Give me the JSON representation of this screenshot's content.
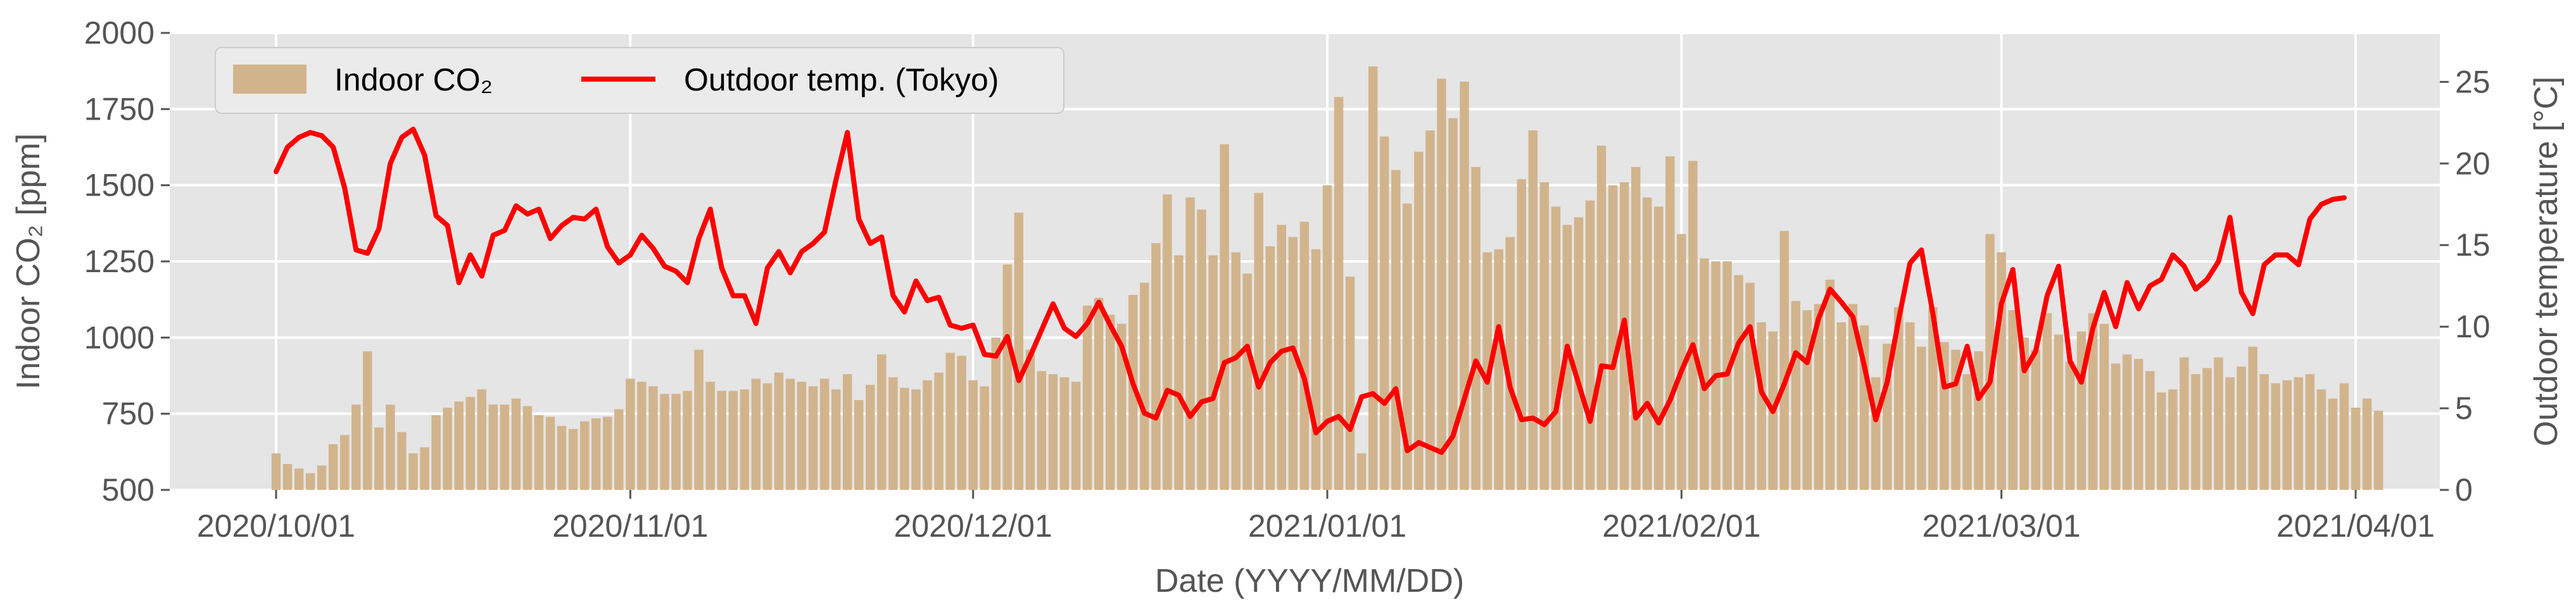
{
  "chart_data": {
    "type": "bar",
    "xlabel": "Date (YYYY/MM/DD)",
    "ylabel_left": "Indoor CO₂ [ppm]",
    "ylabel_right": "Outdoor temperature [°C]",
    "ylim_left": [
      500,
      2000
    ],
    "ylim_right": [
      0,
      28
    ],
    "yticks_left": [
      "500",
      "750",
      "1000",
      "1250",
      "1500",
      "1750",
      "2000"
    ],
    "yticks_right": [
      "0",
      "5",
      "10",
      "15",
      "20",
      "25"
    ],
    "xticks": [
      "2020/10/01",
      "2020/11/01",
      "2020/12/01",
      "2021/01/01",
      "2021/02/01",
      "2021/03/01",
      "2021/04/01"
    ],
    "grid": true,
    "legend_position": "top-left",
    "start_date": "2020/10/01",
    "colors": {
      "background": "#e5e5e5",
      "grid": "#ffffff",
      "bar": "#d2b48c",
      "line": "#ff0000"
    },
    "series": [
      {
        "name": "Indoor CO₂",
        "type": "bar",
        "values": [
          620,
          585,
          570,
          555,
          580,
          650,
          680,
          780,
          955,
          705,
          780,
          690,
          620,
          640,
          745,
          770,
          790,
          805,
          830,
          780,
          780,
          800,
          775,
          745,
          740,
          710,
          700,
          725,
          735,
          740,
          765,
          865,
          855,
          840,
          815,
          815,
          825,
          960,
          855,
          825,
          825,
          830,
          865,
          850,
          885,
          865,
          855,
          840,
          865,
          830,
          880,
          795,
          845,
          945,
          870,
          835,
          830,
          860,
          885,
          950,
          940,
          860,
          840,
          1000,
          1240,
          1410,
          960,
          890,
          880,
          870,
          855,
          1105,
          1130,
          1075,
          1045,
          1140,
          1180,
          1310,
          1470,
          1270,
          1460,
          1420,
          1270,
          1635,
          1280,
          1210,
          1475,
          1300,
          1370,
          1330,
          1380,
          1290,
          1500,
          1790,
          1200,
          620,
          1890,
          1660,
          1550,
          1440,
          1610,
          1680,
          1850,
          1720,
          1840,
          1560,
          1280,
          1290,
          1330,
          1520,
          1680,
          1510,
          1430,
          1370,
          1395,
          1450,
          1630,
          1500,
          1510,
          1560,
          1460,
          1430,
          1595,
          1340,
          1580,
          1260,
          1250,
          1250,
          1205,
          1180,
          1050,
          1020,
          1350,
          1120,
          1090,
          1110,
          1190,
          1050,
          1110,
          1040,
          870,
          980,
          1100,
          1050,
          970,
          1100,
          985,
          960,
          880,
          955,
          1340,
          1280,
          1090,
          1000,
          960,
          1080,
          1010,
          920,
          1020,
          1080,
          1045,
          915,
          945,
          930,
          890,
          820,
          830,
          935,
          880,
          900,
          935,
          870,
          905,
          970,
          880,
          850,
          860,
          870,
          880,
          830,
          800,
          850,
          770,
          800,
          760
        ],
        "color": "#d2b48c"
      },
      {
        "name": "Outdoor temp. (Tokyo)",
        "type": "line",
        "values": [
          19.5,
          21.0,
          21.6,
          21.9,
          21.7,
          21.0,
          18.5,
          14.7,
          14.5,
          16.0,
          20.0,
          21.6,
          22.1,
          20.5,
          16.8,
          16.2,
          12.7,
          14.4,
          13.1,
          15.6,
          15.9,
          17.4,
          16.9,
          17.2,
          15.4,
          16.2,
          16.7,
          16.6,
          17.2,
          14.9,
          13.9,
          14.4,
          15.6,
          14.8,
          13.7,
          13.4,
          12.7,
          15.4,
          17.2,
          13.6,
          11.9,
          11.9,
          10.2,
          13.6,
          14.6,
          13.3,
          14.6,
          15.1,
          15.8,
          19.0,
          21.9,
          16.6,
          15.1,
          15.5,
          11.9,
          10.9,
          12.8,
          11.6,
          11.8,
          10.1,
          9.9,
          10.1,
          8.3,
          8.2,
          9.4,
          6.7,
          8.2,
          9.8,
          11.4,
          9.9,
          9.4,
          10.2,
          11.5,
          10.1,
          8.8,
          6.5,
          4.7,
          4.4,
          6.1,
          5.8,
          4.5,
          5.4,
          5.6,
          7.8,
          8.1,
          8.8,
          6.3,
          7.8,
          8.5,
          8.7,
          6.8,
          3.5,
          4.2,
          4.5,
          3.7,
          5.7,
          5.9,
          5.3,
          6.2,
          2.4,
          2.9,
          2.6,
          2.3,
          3.3,
          5.6,
          7.9,
          6.6,
          10.0,
          6.3,
          4.3,
          4.4,
          4.0,
          4.8,
          8.8,
          6.5,
          4.2,
          7.6,
          7.5,
          10.4,
          4.4,
          5.3,
          4.1,
          5.5,
          7.3,
          8.9,
          6.2,
          7.0,
          7.1,
          9.0,
          10.0,
          6.0,
          4.8,
          6.5,
          8.4,
          7.8,
          10.5,
          12.3,
          11.5,
          10.6,
          7.6,
          4.3,
          6.6,
          10.4,
          13.9,
          14.7,
          10.8,
          6.3,
          6.5,
          8.8,
          5.6,
          6.6,
          11.4,
          13.5,
          7.3,
          8.5,
          11.9,
          13.7,
          7.9,
          6.6,
          9.9,
          12.1,
          10.0,
          12.7,
          11.1,
          12.5,
          12.9,
          14.4,
          13.7,
          12.3,
          12.9,
          14.0,
          16.7,
          12.1,
          10.8,
          13.8,
          14.4,
          14.4,
          13.8,
          16.6,
          17.5,
          17.8,
          17.9
        ],
        "color": "#ff0000"
      }
    ]
  }
}
